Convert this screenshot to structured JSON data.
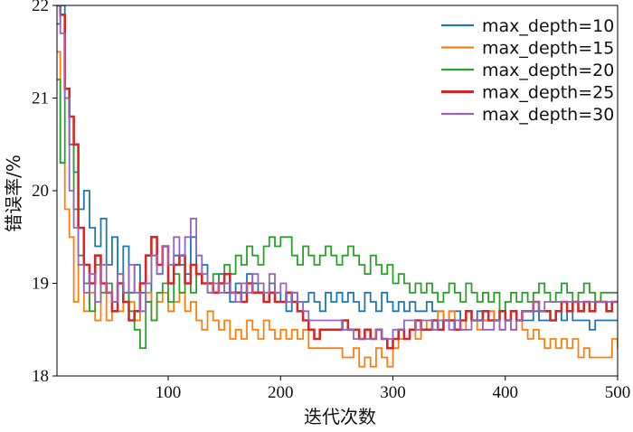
{
  "chart_data": {
    "type": "line",
    "title": "",
    "xlabel": "迭代次数",
    "ylabel": "错误率/%",
    "xlim": [
      1,
      500
    ],
    "ylim": [
      18,
      22
    ],
    "xticks": [
      100,
      200,
      300,
      400,
      500
    ],
    "yticks": [
      18,
      19,
      20,
      21,
      22
    ],
    "grid": false,
    "legend_position": "top-right",
    "series": [
      {
        "name": "max_depth=10",
        "color": "#1f77b4",
        "x": [
          1,
          4,
          8,
          12,
          16,
          20,
          25,
          30,
          35,
          40,
          45,
          50,
          55,
          60,
          65,
          70,
          75,
          80,
          85,
          90,
          95,
          100,
          105,
          110,
          115,
          120,
          125,
          130,
          135,
          140,
          145,
          150,
          155,
          160,
          165,
          170,
          175,
          180,
          185,
          190,
          195,
          200,
          205,
          210,
          215,
          220,
          225,
          230,
          235,
          240,
          245,
          250,
          255,
          260,
          265,
          270,
          275,
          280,
          285,
          290,
          295,
          300,
          305,
          310,
          315,
          320,
          325,
          330,
          335,
          340,
          345,
          350,
          355,
          360,
          365,
          370,
          375,
          380,
          385,
          390,
          395,
          400,
          405,
          410,
          415,
          420,
          425,
          430,
          435,
          440,
          445,
          450,
          455,
          460,
          465,
          470,
          475,
          480,
          485,
          490,
          495,
          500
        ],
        "values": [
          21.8,
          22.0,
          21.0,
          20.5,
          20.2,
          19.8,
          20.0,
          19.6,
          19.4,
          19.7,
          19.2,
          19.5,
          19.0,
          19.4,
          18.9,
          19.2,
          18.9,
          18.8,
          19.3,
          19.1,
          19.4,
          19.0,
          19.3,
          19.2,
          19.1,
          19.5,
          19.1,
          19.2,
          19.0,
          18.9,
          19.1,
          18.9,
          18.8,
          19.0,
          18.9,
          19.1,
          19.0,
          18.9,
          18.8,
          19.0,
          18.9,
          18.8,
          18.7,
          18.9,
          18.8,
          18.8,
          18.9,
          18.8,
          18.7,
          18.9,
          18.8,
          18.9,
          18.8,
          18.9,
          18.8,
          18.7,
          18.9,
          18.8,
          18.7,
          18.9,
          18.8,
          18.7,
          18.8,
          18.7,
          18.8,
          18.7,
          18.7,
          18.8,
          18.7,
          18.7,
          18.6,
          18.7,
          18.7,
          18.6,
          18.7,
          18.6,
          18.7,
          18.6,
          18.7,
          18.6,
          18.7,
          18.6,
          18.7,
          18.6,
          18.6,
          18.6,
          18.7,
          18.6,
          18.6,
          18.6,
          18.7,
          18.6,
          18.7,
          18.6,
          18.6,
          18.6,
          18.5,
          18.6,
          18.6,
          18.6,
          18.6,
          18.6
        ]
      },
      {
        "name": "max_depth=15",
        "color": "#ff7f0e",
        "x": [
          1,
          4,
          8,
          12,
          16,
          20,
          25,
          30,
          35,
          40,
          45,
          50,
          55,
          60,
          65,
          70,
          75,
          80,
          85,
          90,
          95,
          100,
          105,
          110,
          115,
          120,
          125,
          130,
          135,
          140,
          145,
          150,
          155,
          160,
          165,
          170,
          175,
          180,
          185,
          190,
          195,
          200,
          205,
          210,
          215,
          220,
          225,
          230,
          235,
          240,
          245,
          250,
          255,
          260,
          265,
          270,
          275,
          280,
          285,
          290,
          295,
          300,
          305,
          310,
          315,
          320,
          325,
          330,
          335,
          340,
          345,
          350,
          355,
          360,
          365,
          370,
          375,
          380,
          385,
          390,
          395,
          400,
          405,
          410,
          415,
          420,
          425,
          430,
          435,
          440,
          445,
          450,
          455,
          460,
          465,
          470,
          475,
          480,
          485,
          490,
          495,
          500
        ],
        "values": [
          21.5,
          20.3,
          19.8,
          19.5,
          18.8,
          19.2,
          18.7,
          18.9,
          18.6,
          19.0,
          18.6,
          18.8,
          18.7,
          18.9,
          18.8,
          18.6,
          18.7,
          18.9,
          18.6,
          18.8,
          18.9,
          18.7,
          18.8,
          18.9,
          18.7,
          18.8,
          18.6,
          18.5,
          18.7,
          18.6,
          18.5,
          18.6,
          18.4,
          18.5,
          18.4,
          18.6,
          18.5,
          18.4,
          18.6,
          18.5,
          18.4,
          18.5,
          18.4,
          18.5,
          18.4,
          18.5,
          18.3,
          18.3,
          18.3,
          18.3,
          18.3,
          18.3,
          18.2,
          18.2,
          18.3,
          18.1,
          18.2,
          18.1,
          18.3,
          18.2,
          18.1,
          18.3,
          18.4,
          18.4,
          18.5,
          18.4,
          18.5,
          18.6,
          18.5,
          18.7,
          18.6,
          18.7,
          18.6,
          18.5,
          18.7,
          18.6,
          18.5,
          18.6,
          18.7,
          18.6,
          18.5,
          18.6,
          18.5,
          18.6,
          18.5,
          18.4,
          18.5,
          18.4,
          18.3,
          18.4,
          18.3,
          18.4,
          18.3,
          18.4,
          18.2,
          18.3,
          18.2,
          18.2,
          18.2,
          18.2,
          18.4,
          18.3
        ]
      },
      {
        "name": "max_depth=20",
        "color": "#2ca02c",
        "x": [
          1,
          4,
          8,
          12,
          16,
          20,
          25,
          30,
          35,
          40,
          45,
          50,
          55,
          60,
          65,
          70,
          75,
          80,
          85,
          90,
          95,
          100,
          105,
          110,
          115,
          120,
          125,
          130,
          135,
          140,
          145,
          150,
          155,
          160,
          165,
          170,
          175,
          180,
          185,
          190,
          195,
          200,
          205,
          210,
          215,
          220,
          225,
          230,
          235,
          240,
          245,
          250,
          255,
          260,
          265,
          270,
          275,
          280,
          285,
          290,
          295,
          300,
          305,
          310,
          315,
          320,
          325,
          330,
          335,
          340,
          345,
          350,
          355,
          360,
          365,
          370,
          375,
          380,
          385,
          390,
          395,
          400,
          405,
          410,
          415,
          420,
          425,
          430,
          435,
          440,
          445,
          450,
          455,
          460,
          465,
          470,
          475,
          480,
          485,
          490,
          495,
          500
        ],
        "values": [
          21.2,
          20.3,
          21.0,
          20.5,
          19.8,
          19.3,
          19.0,
          18.7,
          19.2,
          18.9,
          19.0,
          18.8,
          19.1,
          18.9,
          18.7,
          18.5,
          18.3,
          18.8,
          18.6,
          18.9,
          19.0,
          18.8,
          19.1,
          18.9,
          19.0,
          18.9,
          19.1,
          19.0,
          18.9,
          19.1,
          19.0,
          19.2,
          19.1,
          19.3,
          19.2,
          19.4,
          19.3,
          19.2,
          19.4,
          19.5,
          19.4,
          19.5,
          19.5,
          19.3,
          19.2,
          19.4,
          19.3,
          19.2,
          19.3,
          19.4,
          19.3,
          19.2,
          19.3,
          19.4,
          19.3,
          19.2,
          19.1,
          19.3,
          19.2,
          19.1,
          19.2,
          19.0,
          19.1,
          19.0,
          18.9,
          19.0,
          18.9,
          19.0,
          18.9,
          18.8,
          18.9,
          19.0,
          18.9,
          18.8,
          19.0,
          18.9,
          18.8,
          18.9,
          18.8,
          18.9,
          18.7,
          18.8,
          18.9,
          18.8,
          18.9,
          18.8,
          18.9,
          19.0,
          18.9,
          18.8,
          18.9,
          19.0,
          18.9,
          18.8,
          18.9,
          19.0,
          18.9,
          18.8,
          18.9,
          18.9,
          18.9,
          18.9
        ]
      },
      {
        "name": "max_depth=25",
        "color": "#d62728",
        "x": [
          1,
          4,
          8,
          12,
          16,
          20,
          25,
          30,
          35,
          40,
          45,
          50,
          55,
          60,
          65,
          70,
          75,
          80,
          85,
          90,
          95,
          100,
          105,
          110,
          115,
          120,
          125,
          130,
          135,
          140,
          145,
          150,
          155,
          160,
          165,
          170,
          175,
          180,
          185,
          190,
          195,
          200,
          205,
          210,
          215,
          220,
          225,
          230,
          235,
          240,
          245,
          250,
          255,
          260,
          265,
          270,
          275,
          280,
          285,
          290,
          295,
          300,
          305,
          310,
          315,
          320,
          325,
          330,
          335,
          340,
          345,
          350,
          355,
          360,
          365,
          370,
          375,
          380,
          385,
          390,
          395,
          400,
          405,
          410,
          415,
          420,
          425,
          430,
          435,
          440,
          445,
          450,
          455,
          460,
          465,
          470,
          475,
          480,
          485,
          490,
          495,
          500
        ],
        "values": [
          22.0,
          21.9,
          21.1,
          20.8,
          20.5,
          19.6,
          19.2,
          19.0,
          19.3,
          19.0,
          18.9,
          18.7,
          19.0,
          18.8,
          18.6,
          18.7,
          19.0,
          19.3,
          19.5,
          19.2,
          19.4,
          19.0,
          19.2,
          19.3,
          19.0,
          19.2,
          19.1,
          19.0,
          19.0,
          18.9,
          19.0,
          19.1,
          18.9,
          18.9,
          18.8,
          19.0,
          18.9,
          18.9,
          18.8,
          18.9,
          18.8,
          18.8,
          18.9,
          18.8,
          18.7,
          18.6,
          18.5,
          18.4,
          18.5,
          18.5,
          18.5,
          18.5,
          18.6,
          18.5,
          18.5,
          18.4,
          18.5,
          18.4,
          18.5,
          18.4,
          18.3,
          18.4,
          18.5,
          18.4,
          18.5,
          18.6,
          18.5,
          18.5,
          18.6,
          18.5,
          18.6,
          18.6,
          18.5,
          18.6,
          18.7,
          18.6,
          18.6,
          18.7,
          18.6,
          18.6,
          18.7,
          18.6,
          18.7,
          18.6,
          18.7,
          18.7,
          18.8,
          18.7,
          18.7,
          18.6,
          18.7,
          18.8,
          18.7,
          18.8,
          18.7,
          18.8,
          18.7,
          18.8,
          18.8,
          18.7,
          18.8,
          18.8
        ]
      },
      {
        "name": "max_depth=30",
        "color": "#9467bd",
        "x": [
          1,
          4,
          8,
          12,
          16,
          20,
          25,
          30,
          35,
          40,
          45,
          50,
          55,
          60,
          65,
          70,
          75,
          80,
          85,
          90,
          95,
          100,
          105,
          110,
          115,
          120,
          125,
          130,
          135,
          140,
          145,
          150,
          155,
          160,
          165,
          170,
          175,
          180,
          185,
          190,
          195,
          200,
          205,
          210,
          215,
          220,
          225,
          230,
          235,
          240,
          245,
          250,
          255,
          260,
          265,
          270,
          275,
          280,
          285,
          290,
          295,
          300,
          305,
          310,
          315,
          320,
          325,
          330,
          335,
          340,
          345,
          350,
          355,
          360,
          365,
          370,
          375,
          380,
          385,
          390,
          395,
          400,
          405,
          410,
          415,
          420,
          425,
          430,
          435,
          440,
          445,
          450,
          455,
          460,
          465,
          470,
          475,
          480,
          485,
          490,
          495,
          500
        ],
        "values": [
          22.0,
          21.7,
          21.0,
          20.0,
          19.6,
          19.2,
          18.9,
          19.1,
          18.8,
          19.2,
          18.9,
          18.8,
          19.1,
          18.9,
          19.2,
          18.9,
          18.7,
          19.0,
          19.3,
          19.1,
          19.4,
          19.2,
          19.5,
          19.3,
          19.5,
          19.7,
          19.3,
          19.1,
          18.9,
          19.0,
          18.9,
          19.0,
          18.9,
          18.8,
          19.0,
          18.9,
          19.1,
          19.0,
          18.9,
          19.1,
          18.9,
          19.0,
          18.8,
          18.9,
          18.8,
          18.7,
          18.6,
          18.6,
          18.6,
          18.6,
          18.6,
          18.6,
          18.5,
          18.5,
          18.4,
          18.4,
          18.4,
          18.4,
          18.5,
          18.4,
          18.4,
          18.5,
          18.5,
          18.6,
          18.6,
          18.5,
          18.6,
          18.6,
          18.5,
          18.6,
          18.6,
          18.5,
          18.6,
          18.5,
          18.5,
          18.6,
          18.6,
          18.5,
          18.5,
          18.6,
          18.5,
          18.6,
          18.5,
          18.6,
          18.7,
          18.7,
          18.8,
          18.7,
          18.8,
          18.8,
          18.8,
          18.8,
          18.8,
          18.8,
          18.8,
          18.8,
          18.8,
          18.8,
          18.8,
          18.8,
          18.8,
          18.8
        ]
      }
    ]
  }
}
